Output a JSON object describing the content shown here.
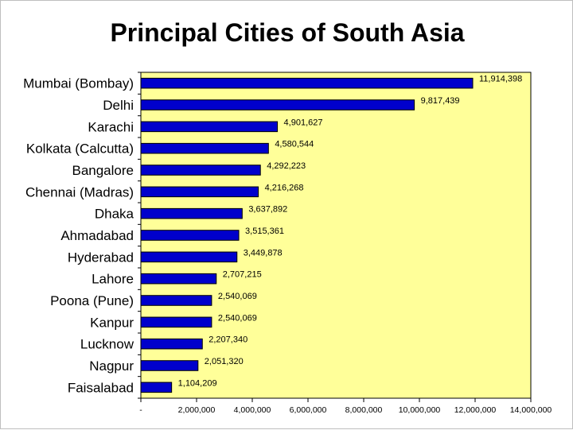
{
  "chart_data": {
    "type": "bar",
    "orientation": "horizontal",
    "title": "Principal Cities of South Asia",
    "categories": [
      "Mumbai (Bombay)",
      "Delhi",
      "Karachi",
      "Kolkata (Calcutta)",
      "Bangalore",
      "Chennai (Madras)",
      "Dhaka",
      "Ahmadabad",
      "Hyderabad",
      "Lahore",
      "Poona (Pune)",
      "Kanpur",
      "Lucknow",
      "Nagpur",
      "Faisalabad"
    ],
    "values": [
      11914398,
      9817439,
      4901627,
      4580544,
      4292223,
      4216268,
      3637892,
      3515361,
      3449878,
      2707215,
      2540069,
      2540069,
      2207340,
      2051320,
      1104209
    ],
    "value_labels": [
      "11,914,398",
      "9,817,439",
      "4,901,627",
      "4,580,544",
      "4,292,223",
      "4,216,268",
      "3,637,892",
      "3,515,361",
      "3,449,878",
      "2,707,215",
      "2,540,069",
      "2,540,069",
      "2,207,340",
      "2,051,320",
      "1,104,209"
    ],
    "xlim": [
      0,
      14000000
    ],
    "xticks": [
      0,
      2000000,
      4000000,
      6000000,
      8000000,
      10000000,
      12000000,
      14000000
    ],
    "xtick_labels": [
      "-",
      "2,000,000",
      "4,000,000",
      "6,000,000",
      "8,000,000",
      "10,000,000",
      "12,000,000",
      "14,000,000"
    ],
    "xlabel": "",
    "ylabel": "",
    "grid": false,
    "legend": "none",
    "colors": {
      "bar": "#0000cc",
      "bar_edge": "#000000",
      "plot_background": "#ffff99",
      "page_background": "#ffffff"
    }
  }
}
